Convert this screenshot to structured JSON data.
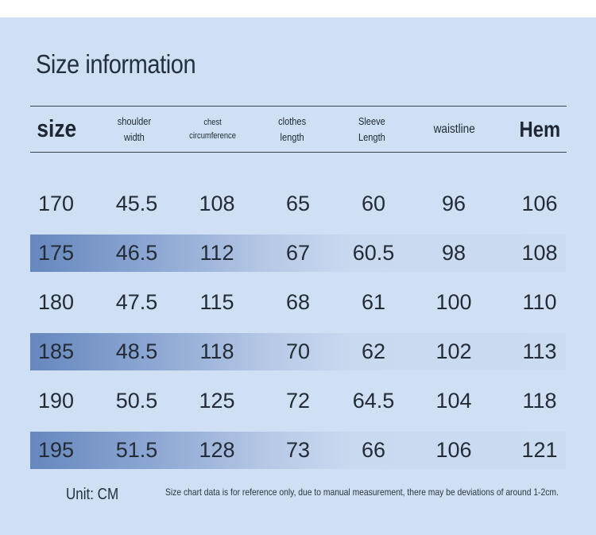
{
  "title": "Size information",
  "headers": {
    "size": "size",
    "shoulder": [
      "shoulder",
      "width"
    ],
    "chest": [
      "chest",
      "circumference"
    ],
    "clothes": [
      "clothes",
      "length"
    ],
    "sleeve": [
      "Sleeve",
      "Length"
    ],
    "waistline": "waistline",
    "hem": "Hem"
  },
  "rows": [
    [
      "170",
      "45.5",
      "108",
      "65",
      "60",
      "96",
      "106"
    ],
    [
      "175",
      "46.5",
      "112",
      "67",
      "60.5",
      "98",
      "108"
    ],
    [
      "180",
      "47.5",
      "115",
      "68",
      "61",
      "100",
      "110"
    ],
    [
      "185",
      "48.5",
      "118",
      "70",
      "62",
      "102",
      "113"
    ],
    [
      "190",
      "50.5",
      "125",
      "72",
      "64.5",
      "104",
      "118"
    ],
    [
      "195",
      "51.5",
      "128",
      "73",
      "66",
      "106",
      "121"
    ]
  ],
  "footer": {
    "unit": "Unit: CM",
    "note": "Size chart data is for reference only, due to manual measurement, there may be deviations of around 1-2cm."
  },
  "colors": {
    "background": "#cfe0f4",
    "row_highlight_start": "#6687bd",
    "text": "#232b36"
  }
}
